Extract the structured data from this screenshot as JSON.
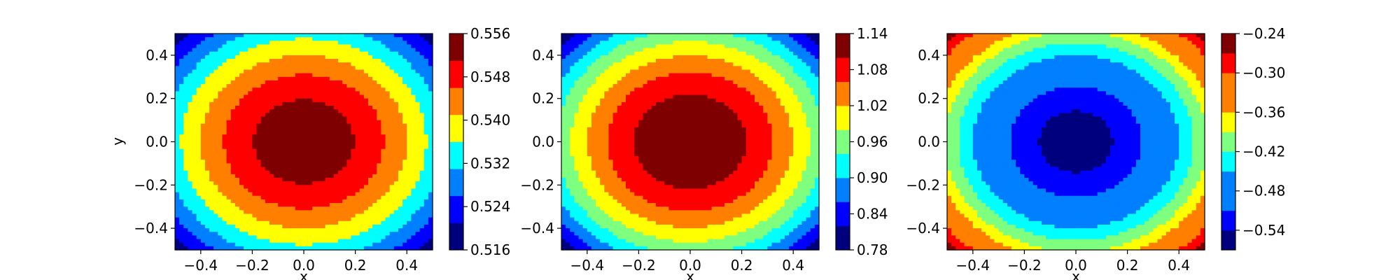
{
  "figure": {
    "panels": 3,
    "colormap": "jet",
    "colors": [
      "#00007f",
      "#0000ff",
      "#007fff",
      "#00ffff",
      "#7fff7f",
      "#ffff00",
      "#ff7f00",
      "#ff0000",
      "#7f0000"
    ]
  },
  "chart_data": [
    {
      "type": "contourf",
      "title": "",
      "xlabel": "x",
      "ylabel": "y",
      "xlim": [
        -0.5,
        0.5
      ],
      "ylim": [
        -0.5,
        0.5
      ],
      "x_ticks": [
        -0.4,
        -0.2,
        0.0,
        0.2,
        0.4
      ],
      "x_tick_labels": [
        "−0.4",
        "−0.2",
        "0.0",
        "0.2",
        "0.4"
      ],
      "y_ticks": [
        -0.4,
        -0.2,
        0.0,
        0.2,
        0.4
      ],
      "y_tick_labels": [
        "−0.4",
        "−0.2",
        "0.0",
        "0.2",
        "0.4"
      ],
      "field": {
        "shape": "radial",
        "center": [
          0.0,
          0.0
        ],
        "value_at_center": 0.555,
        "value_at_corner": 0.517,
        "exponent": 1.75
      },
      "colorbar": {
        "levels": [
          0.516,
          0.521,
          0.526,
          0.531,
          0.536,
          0.541,
          0.546,
          0.551,
          0.556
        ],
        "tick_values": [
          0.516,
          0.524,
          0.532,
          0.54,
          0.548,
          0.556
        ],
        "tick_labels": [
          "0.516",
          "0.524",
          "0.532",
          "0.540",
          "0.548",
          "0.556"
        ]
      }
    },
    {
      "type": "contourf",
      "title": "",
      "xlabel": "x",
      "ylabel": "",
      "xlim": [
        -0.5,
        0.5
      ],
      "ylim": [
        -0.5,
        0.5
      ],
      "x_ticks": [
        -0.4,
        -0.2,
        0.0,
        0.2,
        0.4
      ],
      "x_tick_labels": [
        "−0.4",
        "−0.2",
        "0.0",
        "0.2",
        "0.4"
      ],
      "y_ticks": [
        -0.4,
        -0.2,
        0.0,
        0.2,
        0.4
      ],
      "y_tick_labels": [
        "−0.4",
        "−0.2",
        "0.0",
        "0.2",
        "0.4"
      ],
      "field": {
        "shape": "radial",
        "center": [
          0.0,
          0.0
        ],
        "value_at_center": 1.138,
        "value_at_corner": 0.785,
        "exponent": 1.9
      },
      "colorbar": {
        "levels": [
          0.78,
          0.82,
          0.86,
          0.9,
          0.94,
          0.98,
          1.02,
          1.06,
          1.1,
          1.14
        ],
        "tick_values": [
          0.78,
          0.84,
          0.9,
          0.96,
          1.02,
          1.08,
          1.14
        ],
        "tick_labels": [
          "0.78",
          "0.84",
          "0.90",
          "0.96",
          "1.02",
          "1.08",
          "1.14"
        ]
      }
    },
    {
      "type": "contourf",
      "title": "",
      "xlabel": "x",
      "ylabel": "",
      "xlim": [
        -0.5,
        0.5
      ],
      "ylim": [
        -0.5,
        0.5
      ],
      "x_ticks": [
        -0.4,
        -0.2,
        0.0,
        0.2,
        0.4
      ],
      "x_tick_labels": [
        "−0.4",
        "−0.2",
        "0.0",
        "0.2",
        "0.4"
      ],
      "y_ticks": [
        -0.4,
        -0.2,
        0.0,
        0.2,
        0.4
      ],
      "y_tick_labels": [
        "−0.4",
        "−0.2",
        "0.0",
        "0.2",
        "0.4"
      ],
      "field": {
        "shape": "radial",
        "center": [
          0.0,
          0.0
        ],
        "value_at_center": -0.555,
        "value_at_corner": -0.245,
        "exponent": 1.9
      },
      "colorbar": {
        "levels": [
          -0.57,
          -0.54,
          -0.51,
          -0.48,
          -0.45,
          -0.42,
          -0.39,
          -0.36,
          -0.33,
          -0.3,
          -0.27,
          -0.24
        ],
        "tick_values": [
          -0.54,
          -0.48,
          -0.42,
          -0.36,
          -0.3,
          -0.24
        ],
        "tick_labels": [
          "−0.54",
          "−0.48",
          "−0.42",
          "−0.36",
          "−0.30",
          "−0.24"
        ]
      }
    }
  ]
}
